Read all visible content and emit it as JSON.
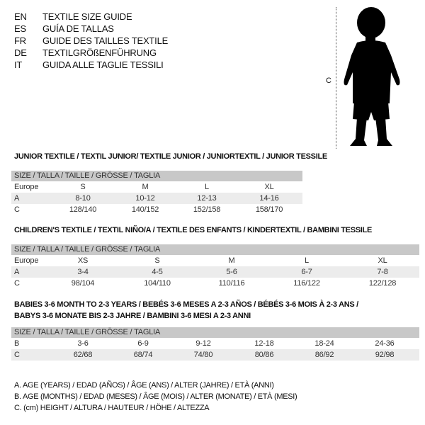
{
  "languages": [
    {
      "code": "EN",
      "name": "TEXTILE SIZE GUIDE"
    },
    {
      "code": "ES",
      "name": "GUÍA DE TALLAS"
    },
    {
      "code": "FR",
      "name": "GUIDE DES TAILLES TEXTILE"
    },
    {
      "code": "DE",
      "name": "TEXTILGRÖßENFÜHRUNG"
    },
    {
      "code": "IT",
      "name": "GUIDA ALLE TAGLIE TESSILI"
    }
  ],
  "figure": {
    "measure_label": "C",
    "icon": "child-silhouette"
  },
  "tables": [
    {
      "title": "JUNIOR TEXTILE / TEXTIL JUNIOR/ TEXTILE JUNIOR / JUNIORTEXTIL / JUNIOR TESSILE",
      "header": "SIZE / TALLA / TAILLE / GRÖSSE / TAGLIA",
      "rows": [
        {
          "label": "Europe",
          "cells": [
            "S",
            "M",
            "L",
            "XL"
          ]
        },
        {
          "label": "A",
          "cells": [
            "8-10",
            "10-12",
            "12-13",
            "14-16"
          ]
        },
        {
          "label": "C",
          "cells": [
            "128/140",
            "140/152",
            "152/158",
            "158/170"
          ]
        }
      ]
    },
    {
      "title": "CHILDREN'S TEXTILE / TEXTIL NIÑO/A / TEXTILE DES ENFANTS / KINDERTEXTIL / BAMBINI TESSILE",
      "header": "SIZE / TALLA / TAILLE / GRÖSSE / TAGLIA",
      "rows": [
        {
          "label": "Europe",
          "cells": [
            "XS",
            "S",
            "M",
            "L",
            "XL"
          ]
        },
        {
          "label": "A",
          "cells": [
            "3-4",
            "4-5",
            "5-6",
            "6-7",
            "7-8"
          ]
        },
        {
          "label": "C",
          "cells": [
            "98/104",
            "104/110",
            "110/116",
            "116/122",
            "122/128"
          ]
        }
      ]
    },
    {
      "title": "BABIES 3-6 MONTH TO 2-3 YEARS / BEBÉS 3-6 MESES A 2-3 AÑOS / BÉBÉS 3-6 MOIS À 2-3 ANS /",
      "title2": "BABYS 3-6 MONATE BIS 2-3 JAHRE / BAMBINI 3-6 MESI A 2-3 ANNI",
      "header": "SIZE / TALLA / TAILLE / GRÖSSE / TAGLIA",
      "rows": [
        {
          "label": "B",
          "cells": [
            "3-6",
            "6-9",
            "9-12",
            "12-18",
            "18-24",
            "24-36"
          ]
        },
        {
          "label": "C",
          "cells": [
            "62/68",
            "68/74",
            "74/80",
            "80/86",
            "86/92",
            "92/98"
          ]
        }
      ]
    }
  ],
  "legend": [
    "A. AGE (YEARS) / EDAD (AÑOS) / ÂGE (ANS) / ALTER (JAHRE) / ETÀ (ANNI)",
    "B. AGE (MONTHS) / EDAD (MESES) / ÂGE (MOIS) / ALTER (MONATE) / ETÀ (MESI)",
    "C. (cm) HEIGHT / ALTURA / HAUTEUR / HÖHE / ALTEZZA"
  ]
}
